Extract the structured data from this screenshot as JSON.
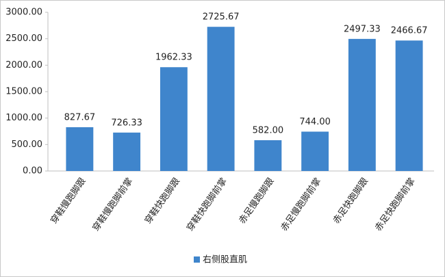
{
  "chart_data": {
    "type": "bar",
    "categories": [
      "穿鞋慢跑脚跟",
      "穿鞋慢跑脚前掌",
      "穿鞋快跑脚跟",
      "穿鞋快跑脚前掌",
      "赤足慢跑脚跟",
      "赤足慢跑脚前掌",
      "赤足快跑脚跟",
      "赤足快跑脚前掌"
    ],
    "series": [
      {
        "name": "右侧股直肌",
        "color": "#3f85cc",
        "values": [
          827.67,
          726.33,
          1962.33,
          2725.67,
          582.0,
          744.0,
          2497.33,
          2466.67
        ],
        "value_labels": [
          "827.67",
          "726.33",
          "1962.33",
          "2725.67",
          "582.00",
          "744.00",
          "2497.33",
          "2466.67"
        ]
      }
    ],
    "ylim": [
      0,
      3000
    ],
    "yticks": [
      {
        "value": 0,
        "label": "0.00"
      },
      {
        "value": 500,
        "label": "500.00"
      },
      {
        "value": 1000,
        "label": "1000.00"
      },
      {
        "value": 1500,
        "label": "1500.00"
      },
      {
        "value": 2000,
        "label": "2000.00"
      },
      {
        "value": 2500,
        "label": "2500.00"
      },
      {
        "value": 3000,
        "label": "3000.00"
      }
    ],
    "grid": false,
    "legend": "bottom"
  }
}
